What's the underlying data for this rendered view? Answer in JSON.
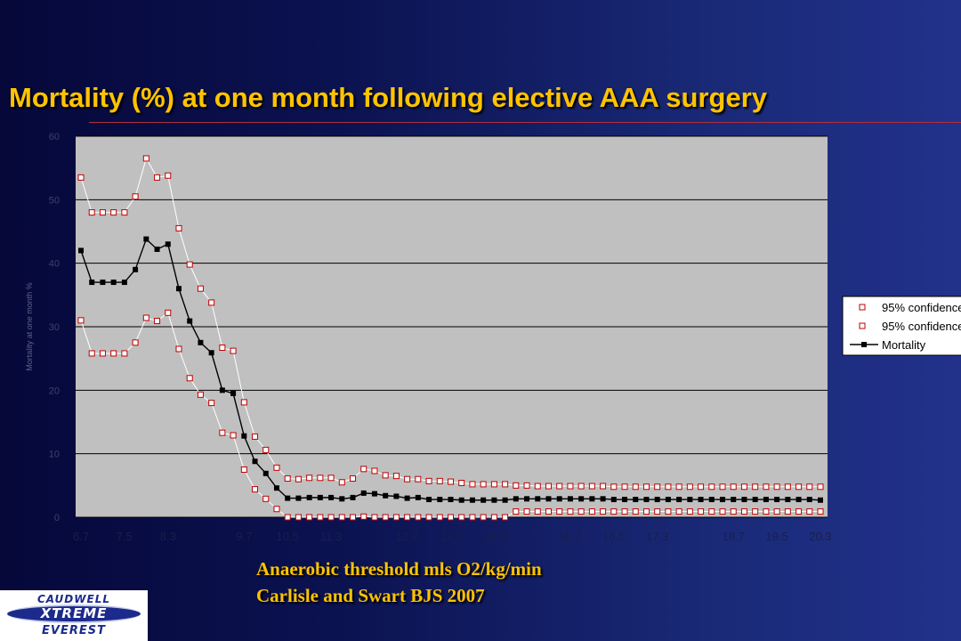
{
  "slide": {
    "title": "Mortality (%) at one month following elective AAA surgery",
    "caption_line1": "Anaerobic threshold mls O2/kg/min",
    "caption_line2": "Carlisle and Swart BJS 2007"
  },
  "logo": {
    "line1": "CAUDWELL",
    "line2": "XTREME",
    "line3": "EVEREST",
    "colors": {
      "background": "#ffffff",
      "ink": "#1c2a8c"
    }
  },
  "colors": {
    "title": "#ffc400",
    "caption": "#ffc400",
    "plot_background": "#c0c0c0",
    "gridline": "#000000",
    "mortality": "#000000",
    "ci_marker": "#c00000",
    "ci_line": "#ffffff"
  },
  "chart_data": {
    "type": "line",
    "title": "",
    "xlabel": "",
    "ylabel": "Mortality at one month %",
    "ylim": [
      0,
      60
    ],
    "yticks": [
      0,
      10,
      20,
      30,
      40,
      50,
      60
    ],
    "grid": true,
    "legend_position": "right",
    "x": [
      6.7,
      6.9,
      7.1,
      7.3,
      7.5,
      7.7,
      7.9,
      8.1,
      8.3,
      8.5,
      8.7,
      8.9,
      9.1,
      9.3,
      9.5,
      9.7,
      9.9,
      10.1,
      10.3,
      10.5,
      10.7,
      10.9,
      11.1,
      11.3,
      11.5,
      11.7,
      11.9,
      12.1,
      12.3,
      12.5,
      12.7,
      12.9,
      13.1,
      13.3,
      13.5,
      13.7,
      13.9,
      14.1,
      14.3,
      14.5,
      14.7,
      14.9,
      15.1,
      15.3,
      15.5,
      15.7,
      15.9,
      16.1,
      16.3,
      16.5,
      16.7,
      16.9,
      17.1,
      17.3,
      17.5,
      17.7,
      17.9,
      18.1,
      18.3,
      18.5,
      18.7,
      18.9,
      19.1,
      19.3,
      19.5,
      19.7,
      19.9,
      20.1,
      20.3
    ],
    "x_tick_labels": [
      "6.7",
      "7.5",
      "8.3",
      "9",
      "9.7",
      "10.5",
      "11.3",
      "12",
      "12.7",
      "13.5",
      "14.3",
      "15",
      "15.7",
      "16.5",
      "17.3",
      "18",
      "18.7",
      "19.5",
      "20.3"
    ],
    "series": [
      {
        "name": "95% confidence",
        "marker": "open-square",
        "values": [
          53.5,
          48,
          48,
          48,
          48,
          50.5,
          56.5,
          53.5,
          53.8,
          45.5,
          39.8,
          36,
          33.8,
          26.7,
          26.2,
          18.1,
          12.7,
          10.6,
          7.8,
          6.1,
          6.0,
          6.2,
          6.2,
          6.2,
          5.5,
          6.1,
          7.6,
          7.3,
          6.6,
          6.5,
          6.0,
          6.0,
          5.7,
          5.7,
          5.6,
          5.4,
          5.2,
          5.2,
          5.2,
          5.2,
          5.0,
          5.0,
          4.9,
          4.9,
          4.9,
          4.9,
          4.9,
          4.9,
          4.9,
          4.8,
          4.8,
          4.8,
          4.8,
          4.8,
          4.8,
          4.8,
          4.8,
          4.8,
          4.8,
          4.8,
          4.8,
          4.8,
          4.8,
          4.8,
          4.8,
          4.8,
          4.8,
          4.8,
          4.8
        ]
      },
      {
        "name": "95% confidence",
        "marker": "open-square",
        "values": [
          31,
          25.8,
          25.8,
          25.8,
          25.8,
          27.5,
          31.4,
          30.9,
          32.2,
          26.5,
          21.9,
          19.3,
          18.0,
          13.3,
          12.9,
          7.5,
          4.4,
          2.9,
          1.3,
          0,
          0,
          0,
          0,
          0,
          0,
          0,
          0.1,
          0,
          0,
          0,
          0,
          0,
          0,
          0,
          0,
          0,
          0,
          0,
          0,
          0,
          0.9,
          0.9,
          0.9,
          0.9,
          0.9,
          0.9,
          0.9,
          0.9,
          0.9,
          0.9,
          0.9,
          0.9,
          0.9,
          0.9,
          0.9,
          0.9,
          0.9,
          0.9,
          0.9,
          0.9,
          0.9,
          0.9,
          0.9,
          0.9,
          0.9,
          0.9,
          0.9,
          0.9,
          0.9
        ]
      },
      {
        "name": "Mortality",
        "marker": "filled-square",
        "values": [
          42,
          37,
          37,
          37,
          37,
          39,
          43.8,
          42.2,
          43,
          36,
          30.9,
          27.5,
          25.9,
          20,
          19.5,
          12.8,
          8.8,
          6.9,
          4.6,
          3.0,
          3.0,
          3.1,
          3.1,
          3.1,
          2.9,
          3.1,
          3.8,
          3.7,
          3.4,
          3.3,
          3.0,
          3.1,
          2.8,
          2.8,
          2.8,
          2.7,
          2.7,
          2.7,
          2.7,
          2.7,
          2.9,
          2.9,
          2.9,
          2.9,
          2.9,
          2.9,
          2.9,
          2.9,
          2.9,
          2.8,
          2.8,
          2.8,
          2.8,
          2.8,
          2.8,
          2.8,
          2.8,
          2.8,
          2.8,
          2.8,
          2.8,
          2.8,
          2.8,
          2.8,
          2.8,
          2.8,
          2.8,
          2.8,
          2.7
        ]
      }
    ]
  }
}
